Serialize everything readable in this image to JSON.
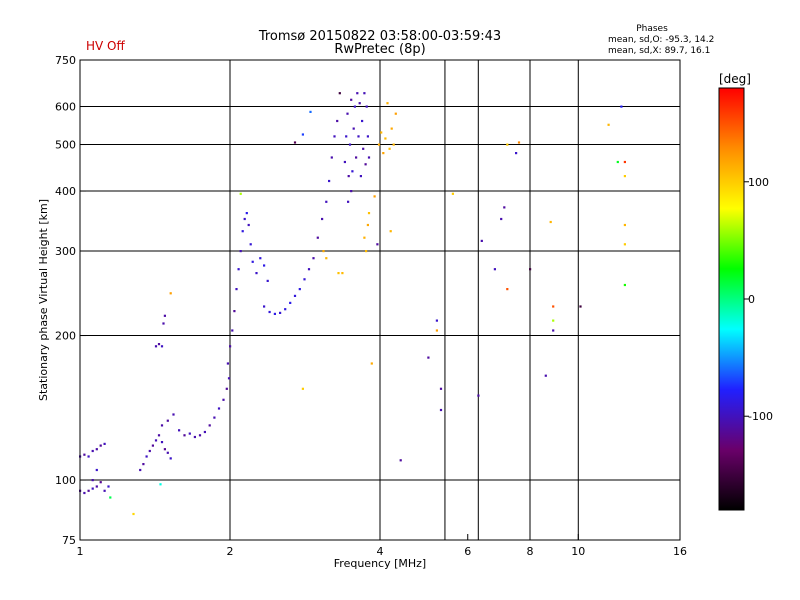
{
  "header": {
    "hv_status": "HV Off",
    "title": "Tromsø 20150822 03:58:00-03:59:43",
    "subtitle": "RwPretec (8p)",
    "stats_heading": "Phases",
    "stats_o": "mean, sd,O: -95.3, 14.2",
    "stats_x": "mean, sd,X: 89.7, 16.1"
  },
  "colorbar": {
    "unit": "[deg]",
    "range": [
      -180,
      180
    ],
    "ticks": [
      {
        "value": 100,
        "label": "100"
      },
      {
        "value": 0,
        "label": "0"
      },
      {
        "value": -100,
        "label": "-100"
      }
    ],
    "stops": [
      "#000000",
      "#6a006a",
      "#2020ff",
      "#00ffff",
      "#00ff00",
      "#ffff00",
      "#ff8c00",
      "#ff0000"
    ]
  },
  "chart_data": {
    "type": "scatter",
    "title": "Tromsø 20150822 03:58:00-03:59:43",
    "subtitle": "RwPretec (8p)",
    "xlabel": "Frequency [MHz]",
    "ylabel": "Stationary phase Virtual Height [km]",
    "x_scale": "log",
    "y_scale": "log",
    "xlim": [
      1,
      16
    ],
    "ylim": [
      75,
      750
    ],
    "x_ticks": [
      {
        "value": 1,
        "label": "1"
      },
      {
        "value": 2,
        "label": "2"
      },
      {
        "value": 4,
        "label": "4"
      },
      {
        "value": 6,
        "label": "6"
      },
      {
        "value": 8,
        "label": "8"
      },
      {
        "value": 10,
        "label": "10"
      },
      {
        "value": 16,
        "label": "16"
      }
    ],
    "y_ticks": [
      {
        "value": 75,
        "label": "75"
      },
      {
        "value": 100,
        "label": "100"
      },
      {
        "value": 200,
        "label": "200"
      },
      {
        "value": 300,
        "label": "300"
      },
      {
        "value": 400,
        "label": "400"
      },
      {
        "value": 500,
        "label": "500"
      },
      {
        "value": 600,
        "label": "600"
      },
      {
        "value": 750,
        "label": "750"
      }
    ],
    "grid_x": [
      2,
      4,
      5.4,
      6.3,
      8,
      10
    ],
    "grid_y": [
      100,
      200,
      300,
      400,
      500,
      600
    ],
    "color_variable": "phase [deg]",
    "points": [
      {
        "f": 1.0,
        "h": 95,
        "p": -110
      },
      {
        "f": 1.02,
        "h": 94,
        "p": -105
      },
      {
        "f": 1.04,
        "h": 95,
        "p": -112
      },
      {
        "f": 1.06,
        "h": 96,
        "p": -100
      },
      {
        "f": 1.08,
        "h": 97,
        "p": -108
      },
      {
        "f": 1.1,
        "h": 99,
        "p": -115
      },
      {
        "f": 1.12,
        "h": 95,
        "p": -103
      },
      {
        "f": 1.14,
        "h": 97,
        "p": -96
      },
      {
        "f": 1.15,
        "h": 92,
        "p": 10
      },
      {
        "f": 1.0,
        "h": 112,
        "p": -105
      },
      {
        "f": 1.02,
        "h": 113,
        "p": -110
      },
      {
        "f": 1.04,
        "h": 112,
        "p": -98
      },
      {
        "f": 1.06,
        "h": 115,
        "p": -104
      },
      {
        "f": 1.08,
        "h": 116,
        "p": -107
      },
      {
        "f": 1.1,
        "h": 118,
        "p": -112
      },
      {
        "f": 1.12,
        "h": 119,
        "p": -100
      },
      {
        "f": 1.08,
        "h": 105,
        "p": -95
      },
      {
        "f": 1.06,
        "h": 100,
        "p": -106
      },
      {
        "f": 1.28,
        "h": 85,
        "p": 95
      },
      {
        "f": 1.32,
        "h": 105,
        "p": -104
      },
      {
        "f": 1.34,
        "h": 108,
        "p": -110
      },
      {
        "f": 1.36,
        "h": 112,
        "p": -98
      },
      {
        "f": 1.38,
        "h": 115,
        "p": -106
      },
      {
        "f": 1.4,
        "h": 118,
        "p": -112
      },
      {
        "f": 1.42,
        "h": 121,
        "p": -102
      },
      {
        "f": 1.44,
        "h": 124,
        "p": -108
      },
      {
        "f": 1.46,
        "h": 120,
        "p": -100
      },
      {
        "f": 1.48,
        "h": 116,
        "p": -114
      },
      {
        "f": 1.5,
        "h": 114,
        "p": -104
      },
      {
        "f": 1.52,
        "h": 111,
        "p": -96
      },
      {
        "f": 1.46,
        "h": 130,
        "p": -107
      },
      {
        "f": 1.5,
        "h": 133,
        "p": -110
      },
      {
        "f": 1.54,
        "h": 137,
        "p": -104
      },
      {
        "f": 1.58,
        "h": 127,
        "p": -101
      },
      {
        "f": 1.62,
        "h": 124,
        "p": -112
      },
      {
        "f": 1.66,
        "h": 125,
        "p": -99
      },
      {
        "f": 1.7,
        "h": 123,
        "p": -105
      },
      {
        "f": 1.74,
        "h": 124,
        "p": -108
      },
      {
        "f": 1.78,
        "h": 126,
        "p": -102
      },
      {
        "f": 1.82,
        "h": 130,
        "p": -110
      },
      {
        "f": 1.86,
        "h": 135,
        "p": -104
      },
      {
        "f": 1.9,
        "h": 141,
        "p": -98
      },
      {
        "f": 1.94,
        "h": 147,
        "p": -106
      },
      {
        "f": 1.97,
        "h": 155,
        "p": -112
      },
      {
        "f": 1.99,
        "h": 163,
        "p": -103
      },
      {
        "f": 1.45,
        "h": 98,
        "p": -20
      },
      {
        "f": 1.42,
        "h": 190,
        "p": -104
      },
      {
        "f": 1.44,
        "h": 192,
        "p": -110
      },
      {
        "f": 1.46,
        "h": 190,
        "p": -98
      },
      {
        "f": 1.47,
        "h": 212,
        "p": -106
      },
      {
        "f": 1.48,
        "h": 220,
        "p": -108
      },
      {
        "f": 1.52,
        "h": 245,
        "p": 120
      },
      {
        "f": 1.98,
        "h": 175,
        "p": -104
      },
      {
        "f": 2.0,
        "h": 190,
        "p": -108
      },
      {
        "f": 2.02,
        "h": 205,
        "p": -104
      },
      {
        "f": 2.04,
        "h": 225,
        "p": -112
      },
      {
        "f": 2.06,
        "h": 250,
        "p": -100
      },
      {
        "f": 2.08,
        "h": 275,
        "p": -94
      },
      {
        "f": 2.1,
        "h": 300,
        "p": -102
      },
      {
        "f": 2.12,
        "h": 330,
        "p": -88
      },
      {
        "f": 2.14,
        "h": 350,
        "p": -96
      },
      {
        "f": 2.16,
        "h": 360,
        "p": -84
      },
      {
        "f": 2.18,
        "h": 340,
        "p": -100
      },
      {
        "f": 2.2,
        "h": 310,
        "p": -92
      },
      {
        "f": 2.22,
        "h": 285,
        "p": -88
      },
      {
        "f": 2.26,
        "h": 270,
        "p": -96
      },
      {
        "f": 2.3,
        "h": 290,
        "p": -90
      },
      {
        "f": 2.34,
        "h": 280,
        "p": -86
      },
      {
        "f": 2.38,
        "h": 260,
        "p": -94
      },
      {
        "f": 2.1,
        "h": 395,
        "p": 60
      },
      {
        "f": 2.34,
        "h": 230,
        "p": -95
      },
      {
        "f": 2.4,
        "h": 224,
        "p": -90
      },
      {
        "f": 2.46,
        "h": 222,
        "p": -86
      },
      {
        "f": 2.52,
        "h": 223,
        "p": -92
      },
      {
        "f": 2.58,
        "h": 227,
        "p": -88
      },
      {
        "f": 2.64,
        "h": 234,
        "p": -85
      },
      {
        "f": 2.7,
        "h": 242,
        "p": -90
      },
      {
        "f": 2.76,
        "h": 250,
        "p": -87
      },
      {
        "f": 2.82,
        "h": 262,
        "p": -92
      },
      {
        "f": 2.88,
        "h": 275,
        "p": -100
      },
      {
        "f": 2.94,
        "h": 290,
        "p": -106
      },
      {
        "f": 2.8,
        "h": 155,
        "p": 100
      },
      {
        "f": 2.7,
        "h": 505,
        "p": -140
      },
      {
        "f": 2.8,
        "h": 525,
        "p": -70
      },
      {
        "f": 2.9,
        "h": 585,
        "p": -60
      },
      {
        "f": 3.0,
        "h": 320,
        "p": -110
      },
      {
        "f": 3.06,
        "h": 350,
        "p": -105
      },
      {
        "f": 3.12,
        "h": 380,
        "p": -100
      },
      {
        "f": 3.16,
        "h": 420,
        "p": -95
      },
      {
        "f": 3.2,
        "h": 470,
        "p": -105
      },
      {
        "f": 3.24,
        "h": 520,
        "p": -100
      },
      {
        "f": 3.28,
        "h": 560,
        "p": -108
      },
      {
        "f": 3.32,
        "h": 640,
        "p": -150
      },
      {
        "f": 3.08,
        "h": 300,
        "p": 115
      },
      {
        "f": 3.12,
        "h": 290,
        "p": 110
      },
      {
        "f": 3.3,
        "h": 270,
        "p": 105
      },
      {
        "f": 3.36,
        "h": 270,
        "p": 108
      },
      {
        "f": 3.4,
        "h": 460,
        "p": -100
      },
      {
        "f": 3.42,
        "h": 520,
        "p": -95
      },
      {
        "f": 3.44,
        "h": 580,
        "p": -105
      },
      {
        "f": 3.46,
        "h": 430,
        "p": -108
      },
      {
        "f": 3.48,
        "h": 500,
        "p": -98
      },
      {
        "f": 3.5,
        "h": 620,
        "p": -110
      },
      {
        "f": 3.52,
        "h": 440,
        "p": -92
      },
      {
        "f": 3.54,
        "h": 540,
        "p": -104
      },
      {
        "f": 3.56,
        "h": 600,
        "p": -96
      },
      {
        "f": 3.58,
        "h": 470,
        "p": -110
      },
      {
        "f": 3.6,
        "h": 640,
        "p": -104
      },
      {
        "f": 3.62,
        "h": 520,
        "p": -98
      },
      {
        "f": 3.64,
        "h": 610,
        "p": -106
      },
      {
        "f": 3.66,
        "h": 430,
        "p": -100
      },
      {
        "f": 3.68,
        "h": 560,
        "p": -94
      },
      {
        "f": 3.7,
        "h": 490,
        "p": -108
      },
      {
        "f": 3.72,
        "h": 640,
        "p": -102
      },
      {
        "f": 3.74,
        "h": 455,
        "p": -112
      },
      {
        "f": 3.76,
        "h": 600,
        "p": -100
      },
      {
        "f": 3.78,
        "h": 520,
        "p": -96
      },
      {
        "f": 3.8,
        "h": 470,
        "p": -104
      },
      {
        "f": 3.45,
        "h": 380,
        "p": -100
      },
      {
        "f": 3.5,
        "h": 400,
        "p": -106
      },
      {
        "f": 3.72,
        "h": 320,
        "p": 112
      },
      {
        "f": 3.75,
        "h": 300,
        "p": 108
      },
      {
        "f": 3.78,
        "h": 340,
        "p": 116
      },
      {
        "f": 3.8,
        "h": 360,
        "p": 105
      },
      {
        "f": 3.85,
        "h": 175,
        "p": 115
      },
      {
        "f": 3.9,
        "h": 390,
        "p": 120
      },
      {
        "f": 3.95,
        "h": 310,
        "p": -110
      },
      {
        "f": 3.98,
        "h": 500,
        "p": 115
      },
      {
        "f": 4.02,
        "h": 530,
        "p": 110
      },
      {
        "f": 4.06,
        "h": 480,
        "p": 118
      },
      {
        "f": 4.1,
        "h": 515,
        "p": 108
      },
      {
        "f": 4.14,
        "h": 610,
        "p": 112
      },
      {
        "f": 4.18,
        "h": 490,
        "p": 106
      },
      {
        "f": 4.22,
        "h": 540,
        "p": 116
      },
      {
        "f": 4.26,
        "h": 500,
        "p": 110
      },
      {
        "f": 4.3,
        "h": 580,
        "p": 120
      },
      {
        "f": 4.2,
        "h": 330,
        "p": 110
      },
      {
        "f": 4.4,
        "h": 110,
        "p": -110
      },
      {
        "f": 5.0,
        "h": 180,
        "p": -110
      },
      {
        "f": 5.2,
        "h": 215,
        "p": -95
      },
      {
        "f": 5.2,
        "h": 205,
        "p": 120
      },
      {
        "f": 5.3,
        "h": 155,
        "p": -110
      },
      {
        "f": 5.3,
        "h": 140,
        "p": -105
      },
      {
        "f": 5.6,
        "h": 395,
        "p": 100
      },
      {
        "f": 6.4,
        "h": 315,
        "p": -105
      },
      {
        "f": 6.3,
        "h": 150,
        "p": -108
      },
      {
        "f": 6.8,
        "h": 275,
        "p": -100
      },
      {
        "f": 7.0,
        "h": 350,
        "p": -105
      },
      {
        "f": 7.1,
        "h": 370,
        "p": -110
      },
      {
        "f": 7.2,
        "h": 500,
        "p": 100
      },
      {
        "f": 7.2,
        "h": 250,
        "p": 150
      },
      {
        "f": 7.5,
        "h": 480,
        "p": -95
      },
      {
        "f": 7.6,
        "h": 505,
        "p": 130
      },
      {
        "f": 8.0,
        "h": 275,
        "p": -150
      },
      {
        "f": 8.6,
        "h": 165,
        "p": -105
      },
      {
        "f": 8.8,
        "h": 345,
        "p": 110
      },
      {
        "f": 8.9,
        "h": 230,
        "p": 150
      },
      {
        "f": 8.9,
        "h": 215,
        "p": 60
      },
      {
        "f": 8.9,
        "h": 205,
        "p": -105
      },
      {
        "f": 10.1,
        "h": 230,
        "p": -150
      },
      {
        "f": 11.5,
        "h": 550,
        "p": 110
      },
      {
        "f": 12.0,
        "h": 460,
        "p": 20
      },
      {
        "f": 12.2,
        "h": 600,
        "p": -80
      },
      {
        "f": 12.4,
        "h": 460,
        "p": 160
      },
      {
        "f": 12.4,
        "h": 430,
        "p": 100
      },
      {
        "f": 12.4,
        "h": 340,
        "p": 110
      },
      {
        "f": 12.4,
        "h": 310,
        "p": 100
      },
      {
        "f": 12.4,
        "h": 255,
        "p": 30
      }
    ]
  }
}
